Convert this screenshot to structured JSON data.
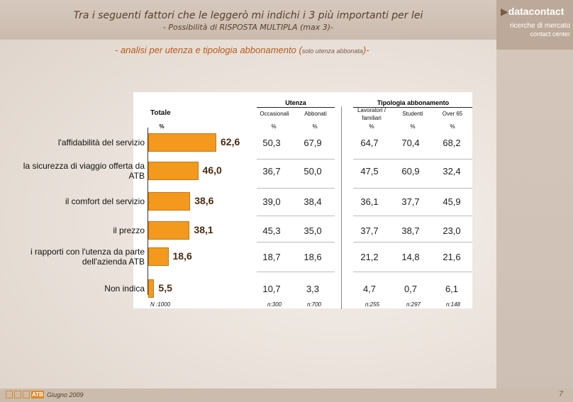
{
  "title": "Tra i seguenti fattori che le leggerò mi indichi i 3 più importanti per lei",
  "subtitle": "- Possibilità di RISPOSTA MULTIPLA (max 3)-",
  "analysis": {
    "main": "- analisi per utenza e tipologia abbonamento (",
    "small": "solo utenza abbonata",
    "end": ")-"
  },
  "logo": {
    "data": "data",
    "contact": "contact",
    "line1": "ricerche di mercato",
    "line2": "contact center"
  },
  "footer": {
    "brand": "ATB",
    "date": "Giugno 2009",
    "page": "7"
  },
  "headers": {
    "totale": "Totale",
    "totale_pct": "%",
    "utenza": "Utenza",
    "tipologia": "Tipologia abbonamento",
    "occasionali": "Occasionali",
    "abbonati": "Abbonati",
    "lavoratori": "Lavoratori / familiari",
    "studenti": "Studenti",
    "over65": "Over 65",
    "pct": "%"
  },
  "colors": {
    "bar": "#f39a1e",
    "accent": "#b85a1a"
  },
  "chart_data": {
    "type": "bar",
    "title": "Tra i seguenti fattori che le leggerò mi indichi i 3 più importanti per lei",
    "categories": [
      "l'affidabilità del servizio",
      "la sicurezza di viaggio offerta da ATB",
      "il comfort del servizio",
      "il prezzo",
      "i rapporti con l'utenza da parte dell'azienda ATB",
      "Non indica"
    ],
    "values": [
      62.6,
      46.0,
      38.6,
      38.1,
      18.6,
      5.5
    ],
    "value_labels": [
      "62,6",
      "46,0",
      "38,6",
      "38,1",
      "18,6",
      "5,5"
    ],
    "xlim": [
      0,
      70
    ],
    "table": {
      "columns": [
        "Occasionali",
        "Abbonati",
        "Lavoratori / familiari",
        "Studenti",
        "Over 65"
      ],
      "rows": [
        [
          "50,3",
          "67,9",
          "64,7",
          "70,4",
          "68,2"
        ],
        [
          "36,7",
          "50,0",
          "47,5",
          "60,9",
          "32,4"
        ],
        [
          "39,0",
          "38,4",
          "36,1",
          "37,7",
          "45,9"
        ],
        [
          "45,3",
          "35,0",
          "37,7",
          "38,7",
          "23,0"
        ],
        [
          "18,7",
          "18,6",
          "21,2",
          "14,8",
          "21,6"
        ],
        [
          "10,7",
          "3,3",
          "4,7",
          "0,7",
          "6,1"
        ]
      ]
    },
    "sample_sizes": {
      "totale": "N :1000",
      "columns": [
        "n:300",
        "n:700",
        "n:255",
        "n:297",
        "n:148"
      ]
    }
  }
}
